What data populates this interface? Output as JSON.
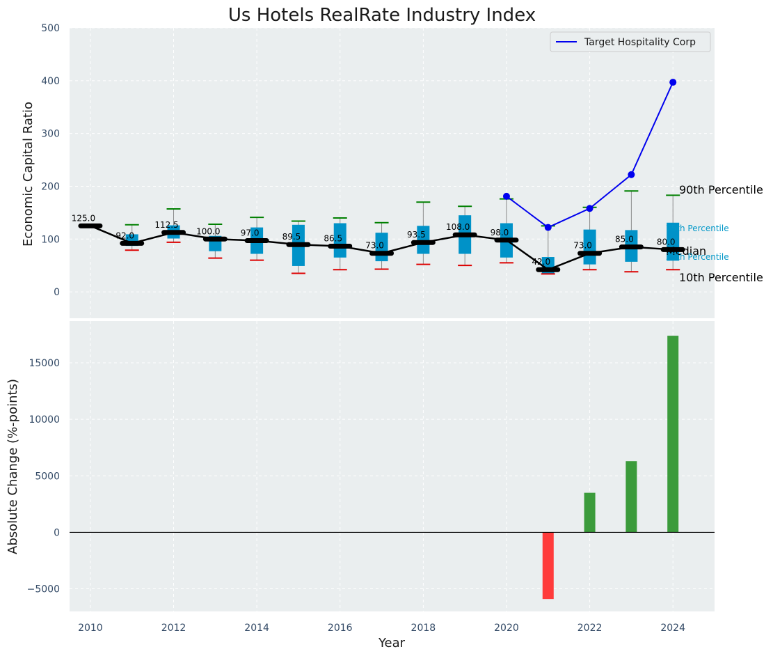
{
  "colors": {
    "background": "#eaeeef",
    "grid": "#ffffff",
    "box": "#0092c8",
    "median_line": "#000000",
    "p90_cap": "#008000",
    "p10_cap": "#dd0000",
    "target_line": "#0000ee",
    "bar_positive": "#3b9b3b",
    "bar_negative": "#ff3b3b",
    "tick_text": "#334a66",
    "quartile_text": "#0097c8"
  },
  "chart_data": [
    {
      "type": "box",
      "title": "Us Hotels RealRate Industry Index",
      "xlabel": "",
      "ylabel": "Economic Capital Ratio",
      "xlim": [
        2009.5,
        2025
      ],
      "ylim": [
        -50,
        500
      ],
      "yticks": [
        0,
        100,
        200,
        300,
        400,
        500
      ],
      "grid": true,
      "legend_position": "top-right",
      "years": [
        2010,
        2011,
        2012,
        2013,
        2014,
        2015,
        2016,
        2017,
        2018,
        2019,
        2020,
        2021,
        2022,
        2023,
        2024
      ],
      "median": [
        125.0,
        92.0,
        112.5,
        100.0,
        97.0,
        89.5,
        86.5,
        73.0,
        93.5,
        108.0,
        98.0,
        42.0,
        73.0,
        85.0,
        80.0
      ],
      "median_labels": [
        "125.0",
        "92.0",
        "112.5",
        "100.0",
        "97.0",
        "89.5",
        "86.5",
        "73.0",
        "93.5",
        "108.0",
        "98.0",
        "42.0",
        "73.0",
        "85.0",
        "80.0"
      ],
      "p25": [
        125,
        87,
        101,
        77,
        72,
        49,
        65,
        58,
        72,
        72,
        65,
        34,
        52,
        57,
        59
      ],
      "p75": [
        125,
        109,
        126,
        106,
        122,
        127,
        130,
        112,
        125,
        145,
        130,
        66,
        118,
        117,
        131
      ],
      "p10": [
        125,
        79,
        94,
        64,
        60,
        35,
        42,
        43,
        52,
        50,
        55,
        34,
        42,
        38,
        42
      ],
      "p90": [
        125,
        127,
        157,
        128,
        141,
        134,
        140,
        131,
        170,
        162,
        176,
        125,
        160,
        191,
        183
      ],
      "series": [
        {
          "name": "Target Hospitality Corp",
          "x": [
            2020,
            2021,
            2022,
            2023,
            2024
          ],
          "values": [
            181,
            122,
            158,
            222,
            397
          ]
        }
      ],
      "annotations": {
        "p90": "90th Percentile",
        "p75": "75th Percentile",
        "median": "Median",
        "p25": "25th Percentile",
        "p10": "10th Percentile"
      }
    },
    {
      "type": "bar",
      "xlabel": "Year",
      "ylabel": "Absolute Change (%-points)",
      "xlim": [
        2009.5,
        2025
      ],
      "ylim": [
        -7000,
        18700
      ],
      "yticks": [
        -5000,
        0,
        5000,
        10000,
        15000
      ],
      "ytick_labels": [
        "−5000",
        "0",
        "5000",
        "10000",
        "15000"
      ],
      "xticks": [
        2010,
        2012,
        2014,
        2016,
        2018,
        2020,
        2022,
        2024
      ],
      "grid": true,
      "categories": [
        2021,
        2022,
        2023,
        2024
      ],
      "values": [
        -5900,
        3500,
        6300,
        17400
      ]
    }
  ]
}
